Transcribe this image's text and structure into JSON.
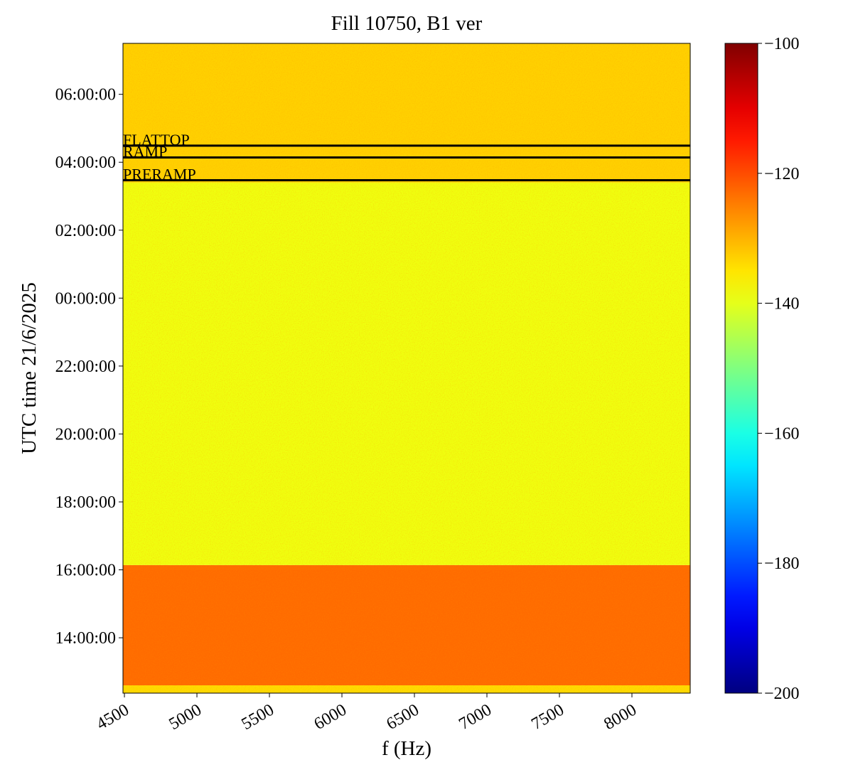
{
  "chart_data": {
    "type": "heatmap",
    "title": "Fill 10750, B1 ver",
    "xlabel": "f (Hz)",
    "ylabel": "UTC time 21/6/2025",
    "xlim": [
      4490,
      8402
    ],
    "xticks": [
      4500,
      5000,
      5500,
      6000,
      6500,
      7000,
      7500,
      8000
    ],
    "ylim": [
      12.37,
      31.5
    ],
    "yticks": [
      {
        "value": 14,
        "label": "14:00:00"
      },
      {
        "value": 16,
        "label": "16:00:00"
      },
      {
        "value": 18,
        "label": "18:00:00"
      },
      {
        "value": 20,
        "label": "20:00:00"
      },
      {
        "value": 22,
        "label": "22:00:00"
      },
      {
        "value": 24,
        "label": "00:00:00"
      },
      {
        "value": 26,
        "label": "02:00:00"
      },
      {
        "value": 28,
        "label": "04:00:00"
      },
      {
        "value": 30,
        "label": "06:00:00"
      }
    ],
    "bands": [
      {
        "t0": 12.37,
        "t1": 12.6,
        "value": -134
      },
      {
        "t0": 12.6,
        "t1": 16.14,
        "value": -123
      },
      {
        "t0": 16.14,
        "t1": 27.4,
        "value": -139
      },
      {
        "t0": 27.4,
        "t1": 31.5,
        "value": -133
      }
    ],
    "colormap": "jet",
    "clim": [
      -200,
      -100
    ],
    "cticks": [
      {
        "value": -100,
        "label": "−100"
      },
      {
        "value": -120,
        "label": "−120"
      },
      {
        "value": -140,
        "label": "−140"
      },
      {
        "value": -160,
        "label": "−160"
      },
      {
        "value": -180,
        "label": "−180"
      },
      {
        "value": -200,
        "label": "−200"
      }
    ],
    "annotations": [
      {
        "label": "FLATTOP",
        "y": 28.49
      },
      {
        "label": "RAMP",
        "y": 28.14
      },
      {
        "label": "PRERAMP",
        "y": 27.47
      }
    ]
  }
}
